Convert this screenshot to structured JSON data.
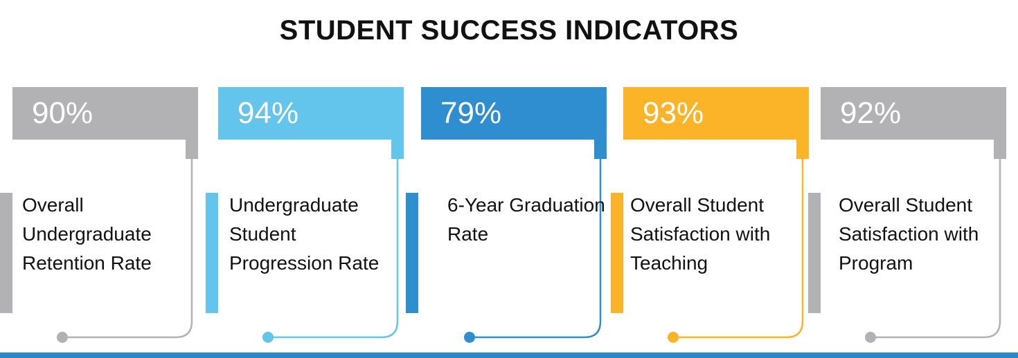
{
  "title": "STUDENT SUCCESS INDICATORS",
  "chart_data": {
    "type": "table",
    "title": "STUDENT SUCCESS INDICATORS",
    "indicators": [
      {
        "value": "90%",
        "label": "Overall Undergraduate Retention Rate",
        "color": "#b2b2b4"
      },
      {
        "value": "94%",
        "label": "Undergraduate Student Progression Rate",
        "color": "#63c4ec"
      },
      {
        "value": "79%",
        "label": "6-Year Graduation Rate",
        "color": "#2f8ecf"
      },
      {
        "value": "93%",
        "label": "Overall Student Satisfaction with Teaching",
        "color": "#fbb428"
      },
      {
        "value": "92%",
        "label": "Overall Student Satisfaction with Program",
        "color": "#b2b2b4"
      }
    ]
  }
}
